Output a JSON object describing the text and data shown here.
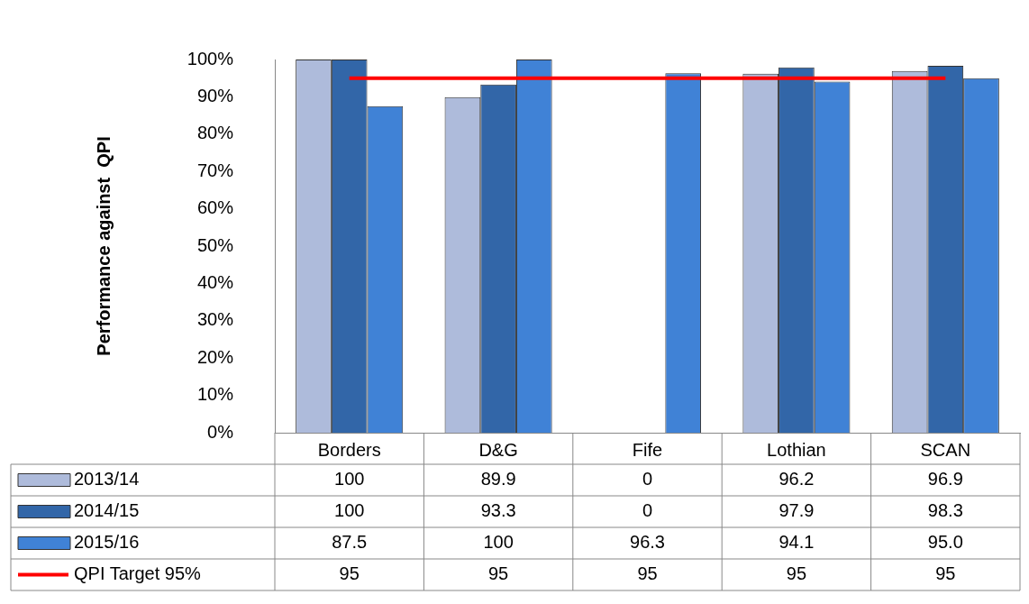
{
  "chart_data": {
    "type": "bar",
    "ylabel": "Performance against  QPI",
    "categories": [
      "Borders",
      "D&G",
      "Fife",
      "Lothian",
      "SCAN"
    ],
    "legend": "bottom left",
    "ylim": [
      0,
      100
    ],
    "yticks": [
      {
        "value": 0,
        "label": "0%"
      },
      {
        "value": 10,
        "label": "10%"
      },
      {
        "value": 20,
        "label": "20%"
      },
      {
        "value": 30,
        "label": "30%"
      },
      {
        "value": 40,
        "label": "40%"
      },
      {
        "value": 50,
        "label": "50%"
      },
      {
        "value": 60,
        "label": "60%"
      },
      {
        "value": 70,
        "label": "70%"
      },
      {
        "value": 80,
        "label": "80%"
      },
      {
        "value": 90,
        "label": "90%"
      },
      {
        "value": 100,
        "label": "100%"
      }
    ],
    "series": [
      {
        "name": "2013/14",
        "color": "#aebbdb",
        "values": [
          100,
          89.9,
          0,
          96.2,
          96.9
        ],
        "value_labels": [
          "100",
          "89.9",
          "0",
          "96.2",
          "96.9"
        ]
      },
      {
        "name": "2014/15",
        "color": "#3266a8",
        "values": [
          100,
          93.3,
          0,
          97.9,
          98.3
        ],
        "value_labels": [
          "100",
          "93.3",
          "0",
          "97.9",
          "98.3"
        ]
      },
      {
        "name": "2015/16",
        "color": "#4082d6",
        "values": [
          87.5,
          100,
          96.3,
          94.1,
          95.0
        ],
        "value_labels": [
          "87.5",
          "100",
          "96.3",
          "94.1",
          "95.0"
        ]
      },
      {
        "name": "QPI Target 95%",
        "type": "line",
        "color": "#ff0000",
        "values": [
          95,
          95,
          95,
          95,
          95
        ],
        "value_labels": [
          "95",
          "95",
          "95",
          "95",
          "95"
        ]
      }
    ]
  }
}
